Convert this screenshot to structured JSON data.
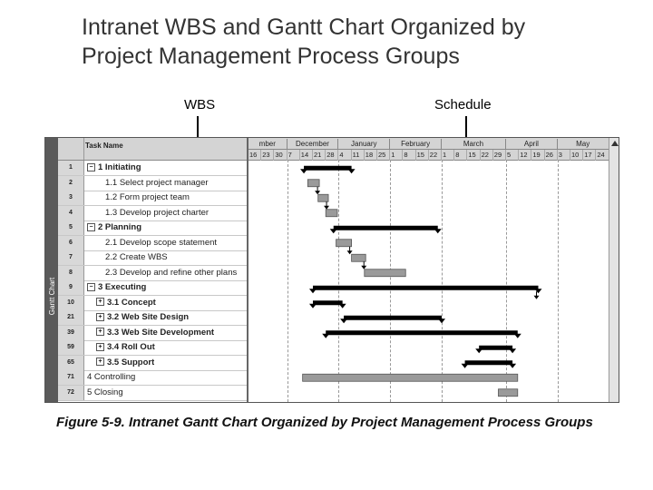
{
  "slide": {
    "title_line1": "Intranet WBS and Gantt Chart Organized by",
    "title_line2": "Project Management Process Groups"
  },
  "callouts": {
    "wbs": "WBS",
    "schedule": "Schedule"
  },
  "app": {
    "side_label": "Gantt Chart",
    "task_name_header": "Task Name",
    "months": [
      "mber",
      "December",
      "January",
      "February",
      "March",
      "April",
      "May"
    ],
    "weeks": [
      "16",
      "23",
      "30",
      "7",
      "14",
      "21",
      "28",
      "4",
      "11",
      "18",
      "25",
      "1",
      "8",
      "15",
      "22",
      "1",
      "8",
      "15",
      "22",
      "29",
      "5",
      "12",
      "19",
      "26",
      "3",
      "10",
      "17",
      "24"
    ],
    "tasks": [
      {
        "id": "1",
        "name": "1 Initiating",
        "level": 0,
        "expander": "−",
        "bold": true
      },
      {
        "id": "2",
        "name": "1.1 Select project manager",
        "level": 1,
        "expander": "",
        "bold": false
      },
      {
        "id": "3",
        "name": "1.2 Form project team",
        "level": 1,
        "expander": "",
        "bold": false
      },
      {
        "id": "4",
        "name": "1.3 Develop project charter",
        "level": 1,
        "expander": "",
        "bold": false
      },
      {
        "id": "5",
        "name": "2 Planning",
        "level": 0,
        "expander": "−",
        "bold": true
      },
      {
        "id": "6",
        "name": "2.1 Develop scope statement",
        "level": 1,
        "expander": "",
        "bold": false
      },
      {
        "id": "7",
        "name": "2.2 Create WBS",
        "level": 1,
        "expander": "",
        "bold": false
      },
      {
        "id": "8",
        "name": "2.3 Develop and refine other plans",
        "level": 1,
        "expander": "",
        "bold": false
      },
      {
        "id": "9",
        "name": "3 Executing",
        "level": 0,
        "expander": "−",
        "bold": true
      },
      {
        "id": "10",
        "name": "3.1 Concept",
        "level": 1,
        "expander": "+",
        "bold": true
      },
      {
        "id": "21",
        "name": "3.2 Web Site Design",
        "level": 1,
        "expander": "+",
        "bold": true
      },
      {
        "id": "39",
        "name": "3.3 Web Site Development",
        "level": 1,
        "expander": "+",
        "bold": true
      },
      {
        "id": "59",
        "name": "3.4 Roll Out",
        "level": 1,
        "expander": "+",
        "bold": true
      },
      {
        "id": "65",
        "name": "3.5 Support",
        "level": 1,
        "expander": "+",
        "bold": true
      },
      {
        "id": "71",
        "name": "4 Controlling",
        "level": 0,
        "expander": "",
        "bold": false
      },
      {
        "id": "72",
        "name": "5 Closing",
        "level": 0,
        "expander": "",
        "bold": false
      }
    ]
  },
  "chart_data": {
    "type": "gantt",
    "time_unit": "week column",
    "bars": [
      {
        "row": 0,
        "kind": "summary",
        "start": 4.3,
        "end": 8.0
      },
      {
        "row": 1,
        "kind": "task",
        "start": 4.6,
        "end": 5.5
      },
      {
        "row": 2,
        "kind": "task",
        "start": 5.4,
        "end": 6.2
      },
      {
        "row": 3,
        "kind": "task",
        "start": 6.0,
        "end": 6.9
      },
      {
        "row": 4,
        "kind": "summary",
        "start": 6.6,
        "end": 14.7
      },
      {
        "row": 5,
        "kind": "task",
        "start": 6.8,
        "end": 8.0
      },
      {
        "row": 6,
        "kind": "task",
        "start": 8.0,
        "end": 9.1
      },
      {
        "row": 7,
        "kind": "task",
        "start": 9.0,
        "end": 12.2
      },
      {
        "row": 8,
        "kind": "summary",
        "start": 5.0,
        "end": 22.5
      },
      {
        "row": 9,
        "kind": "summary",
        "start": 5.0,
        "end": 7.3
      },
      {
        "row": 10,
        "kind": "summary",
        "start": 7.4,
        "end": 15.0
      },
      {
        "row": 11,
        "kind": "summary",
        "start": 6.0,
        "end": 20.9
      },
      {
        "row": 12,
        "kind": "summary",
        "start": 17.9,
        "end": 20.5
      },
      {
        "row": 13,
        "kind": "summary",
        "start": 16.8,
        "end": 20.5
      },
      {
        "row": 14,
        "kind": "task",
        "start": 4.2,
        "end": 20.9
      },
      {
        "row": 15,
        "kind": "task",
        "start": 19.4,
        "end": 20.9
      }
    ]
  },
  "caption": "Figure 5-9. Intranet Gantt Chart Organized by Project Management Process Groups"
}
